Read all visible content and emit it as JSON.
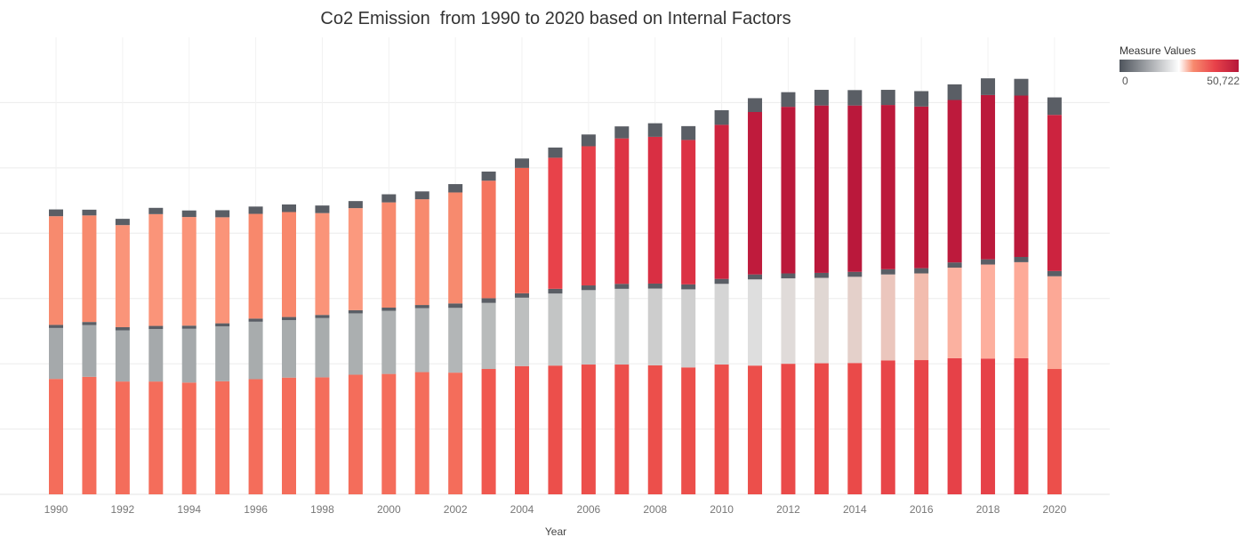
{
  "chart_data": {
    "type": "bar",
    "stacked": true,
    "title": "Co2 Emission  from 1990 to 2020 based on Internal Factors",
    "xlabel": "Year",
    "ylabel": "",
    "ylim": [
      0,
      175000
    ],
    "y_gridlines": [
      25000,
      50000,
      75000,
      100000,
      125000,
      150000
    ],
    "grid": true,
    "legend": {
      "title": "Measure Values",
      "placement": "top-right",
      "min_label": "0",
      "max_label": "50,722",
      "min": 0,
      "max": 50722,
      "colors": [
        "#4e545c",
        "#ffffff",
        "#f78a6e",
        "#e8424a",
        "#b5173a"
      ]
    },
    "categories": [
      "1990",
      "1991",
      "1992",
      "1993",
      "1994",
      "1995",
      "1996",
      "1997",
      "1998",
      "1999",
      "2000",
      "2001",
      "2002",
      "2003",
      "2004",
      "2005",
      "2006",
      "2007",
      "2008",
      "2009",
      "2010",
      "2011",
      "2012",
      "2013",
      "2014",
      "2015",
      "2016",
      "2017",
      "2018",
      "2019",
      "2020"
    ],
    "x_tick_labels": [
      "1990",
      "1992",
      "1994",
      "1996",
      "1998",
      "2000",
      "2002",
      "2004",
      "2006",
      "2008",
      "2010",
      "2012",
      "2014",
      "2016",
      "2018",
      "2020"
    ],
    "series": [
      {
        "values": [
          44200,
          45000,
          43200,
          43200,
          42800,
          43300,
          44100,
          44700,
          44800,
          45800,
          46100,
          46800,
          46600,
          48000,
          49100,
          49300,
          49700,
          49700,
          49400,
          48600,
          49700,
          49300,
          50000,
          50200,
          50300,
          51300,
          51400,
          52100,
          52000,
          52100,
          48000
        ]
      },
      {
        "values": [
          19500,
          19800,
          19600,
          20100,
          20600,
          21000,
          22000,
          22000,
          22700,
          23500,
          24200,
          24500,
          24800,
          25300,
          26200,
          27600,
          28500,
          29000,
          29400,
          29900,
          30900,
          33000,
          32700,
          32700,
          33000,
          32900,
          33200,
          34700,
          36000,
          36800,
          35500
        ]
      },
      {
        "values": [
          1200,
          1200,
          1200,
          1200,
          1200,
          1200,
          1200,
          1200,
          1200,
          1200,
          1200,
          1200,
          1700,
          1800,
          1700,
          1800,
          1800,
          1900,
          1900,
          1900,
          1900,
          1900,
          1900,
          1900,
          1900,
          2000,
          2000,
          2000,
          2000,
          2000,
          2000
        ]
      },
      {
        "values": [
          41600,
          40800,
          39100,
          42800,
          41600,
          40600,
          40100,
          40200,
          39000,
          39100,
          40300,
          40500,
          42500,
          45000,
          48000,
          50200,
          53300,
          55700,
          56200,
          55300,
          59000,
          62200,
          63800,
          64100,
          63700,
          62900,
          61900,
          62200,
          62900,
          61800,
          59800
        ]
      },
      {
        "values": [
          2600,
          2200,
          2400,
          2400,
          2500,
          2700,
          2800,
          2900,
          2900,
          2700,
          3100,
          3000,
          3200,
          3500,
          3600,
          3900,
          4500,
          4600,
          5200,
          5300,
          5600,
          5300,
          5600,
          6000,
          5900,
          5800,
          5900,
          6000,
          6400,
          6400,
          6700
        ]
      }
    ],
    "segment_colors": [
      [
        "#f46d5b",
        "#f46d5b",
        "#f46d5b",
        "#f46d5b",
        "#f46d5b",
        "#f46d5b",
        "#f46d5b",
        "#f46d5b",
        "#f46d5b",
        "#f46d5b",
        "#f46d5b",
        "#f46d5b",
        "#f46d5b",
        "#f0584f",
        "#ee524c",
        "#ec4f4b",
        "#ec4f4b",
        "#ec4f4b",
        "#ec4f4b",
        "#ec4f4b",
        "#ec4f4b",
        "#ec4f4b",
        "#ea4a49",
        "#ea4a49",
        "#ea4a49",
        "#e84549",
        "#e84549",
        "#e64148",
        "#e64148",
        "#e64148",
        "#ec4f4b"
      ],
      [
        "#a5a9ab",
        "#a5a9ab",
        "#a5a9ab",
        "#a5a9ab",
        "#a5a9ab",
        "#a5a9ab",
        "#a8acad",
        "#a8acad",
        "#a8acad",
        "#abafb0",
        "#aeb1b2",
        "#b1b4b5",
        "#b3b6b7",
        "#b8bbbb",
        "#bdbfbf",
        "#c3c5c5",
        "#c6c8c8",
        "#c9caca",
        "#cdcdcd",
        "#cfcfcf",
        "#d5d5d5",
        "#dedede",
        "#e0dbd9",
        "#e0d7d3",
        "#e4d0ca",
        "#ebc6bd",
        "#f2bcae",
        "#fbb1a0",
        "#fdaf9e",
        "#fdaa98",
        "#fca896"
      ],
      [
        "#5a5e65",
        "#5a5e65",
        "#5a5e65",
        "#5a5e65",
        "#5a5e65",
        "#5a5e65",
        "#5a5e65",
        "#5a5e65",
        "#5a5e65",
        "#5a5e65",
        "#5a5e65",
        "#5a5e65",
        "#5a5e65",
        "#5a5e65",
        "#5a5e65",
        "#5a5e65",
        "#5a5e65",
        "#5a5e65",
        "#5a5e65",
        "#5a5e65",
        "#5a5e65",
        "#5a5e65",
        "#5a5e65",
        "#5a5e65",
        "#5a5e65",
        "#5a5e65",
        "#5a5e65",
        "#5a5e65",
        "#5a5e65",
        "#5a5e65",
        "#5a5e65"
      ],
      [
        "#f78a6e",
        "#f78a6e",
        "#fa9479",
        "#fa9479",
        "#fa9479",
        "#fa9479",
        "#f8886c",
        "#f8886c",
        "#fa9479",
        "#fb997e",
        "#f78a6e",
        "#f78a6e",
        "#f78a6e",
        "#f4755f",
        "#f06352",
        "#e8424a",
        "#e5404a",
        "#dd3344",
        "#d92f43",
        "#dc3244",
        "#cd243f",
        "#bf1b3c",
        "#bb193b",
        "#ba183b",
        "#ba183b",
        "#bc193b",
        "#bc193b",
        "#bd1a3c",
        "#bb193b",
        "#bb193b",
        "#cc233f"
      ],
      [
        "#5a5e65",
        "#5a5e65",
        "#5a5e65",
        "#5a5e65",
        "#5a5e65",
        "#5a5e65",
        "#5a5e65",
        "#5a5e65",
        "#5a5e65",
        "#5a5e65",
        "#5a5e65",
        "#5a5e65",
        "#5a5e65",
        "#5a5e65",
        "#5a5e65",
        "#5a5e65",
        "#5a5e65",
        "#5a5e65",
        "#5a5e65",
        "#5a5e65",
        "#5a5e65",
        "#5a5e65",
        "#5a5e65",
        "#5a5e65",
        "#5a5e65",
        "#5a5e65",
        "#5a5e65",
        "#5a5e65",
        "#5a5e65",
        "#5a5e65",
        "#5a5e65"
      ]
    ]
  }
}
